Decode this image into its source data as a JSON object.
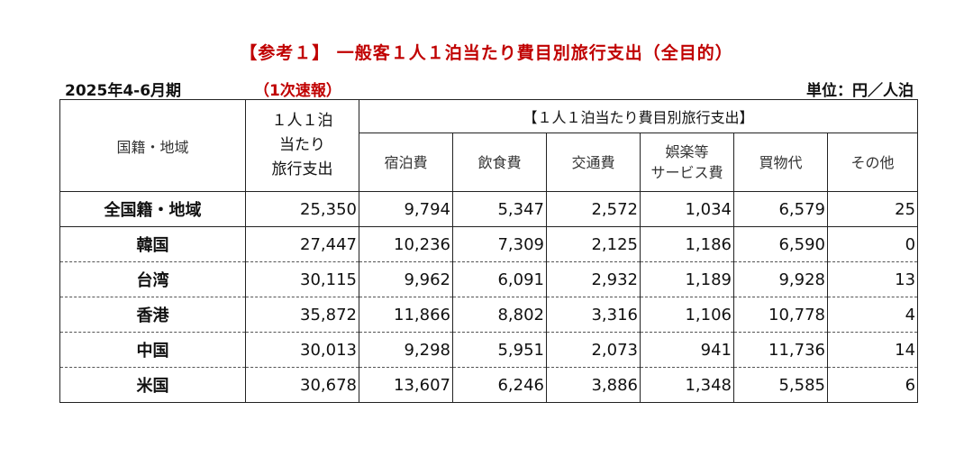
{
  "title": "【参考１】 一般客１人１泊当たり費目別旅行支出（全目的）",
  "period": "2025年4-6月期",
  "preliminary": "（1次速報）",
  "unit": "単位：円／人泊",
  "colors": {
    "title": "#c00000",
    "text": "#111111",
    "border": "#222222"
  },
  "table": {
    "header_country": "国籍・地域",
    "header_total": [
      "１人１泊",
      "当たり",
      "旅行支出"
    ],
    "header_group": "【１人１泊当たり費目別旅行支出】",
    "categories": [
      "宿泊費",
      "飲食費",
      "交通費",
      [
        "娯楽等",
        "サービス費"
      ],
      "買物代",
      "その他"
    ],
    "rows": [
      {
        "name": "全国籍・地域",
        "total": "25,350",
        "values": [
          "9,794",
          "5,347",
          "2,572",
          "1,034",
          "6,579",
          "25"
        ]
      },
      {
        "name": "韓国",
        "total": "27,447",
        "values": [
          "10,236",
          "7,309",
          "2,125",
          "1,186",
          "6,590",
          "0"
        ]
      },
      {
        "name": "台湾",
        "total": "30,115",
        "values": [
          "9,962",
          "6,091",
          "2,932",
          "1,189",
          "9,928",
          "13"
        ]
      },
      {
        "name": "香港",
        "total": "35,872",
        "values": [
          "11,866",
          "8,802",
          "3,316",
          "1,106",
          "10,778",
          "4"
        ]
      },
      {
        "name": "中国",
        "total": "30,013",
        "values": [
          "9,298",
          "5,951",
          "2,073",
          "941",
          "11,736",
          "14"
        ]
      },
      {
        "name": "米国",
        "total": "30,678",
        "values": [
          "13,607",
          "6,246",
          "3,886",
          "1,348",
          "5,585",
          "6"
        ]
      }
    ]
  }
}
